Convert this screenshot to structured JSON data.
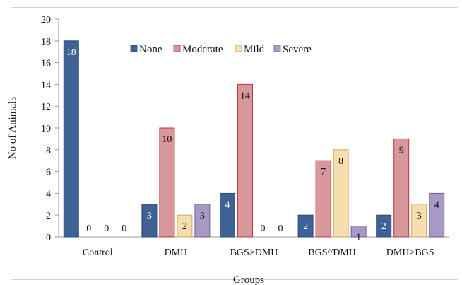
{
  "chart_data": {
    "type": "bar",
    "title": "",
    "xlabel": "Groups",
    "ylabel": "No of Animals",
    "ylim": [
      0,
      20
    ],
    "yticks": [
      0,
      2,
      4,
      6,
      8,
      10,
      12,
      14,
      16,
      18,
      20
    ],
    "grid": false,
    "legend_position": "top",
    "categories": [
      "Control",
      "DMH",
      "BGS>DMH",
      "BGS//DMH",
      "DMH>BGS"
    ],
    "series": [
      {
        "name": "None",
        "color": "#3d6296",
        "values": [
          18,
          3,
          4,
          2,
          2
        ]
      },
      {
        "name": "Moderate",
        "color": "#d7979b",
        "values": [
          0,
          10,
          14,
          7,
          9
        ]
      },
      {
        "name": "Mild",
        "color": "#f6deae",
        "values": [
          0,
          2,
          0,
          8,
          3
        ]
      },
      {
        "name": "Severe",
        "color": "#a899c5",
        "values": [
          0,
          3,
          0,
          1,
          4
        ]
      }
    ],
    "data_labels": [
      [
        "18",
        "0",
        "0",
        "0"
      ],
      [
        "3",
        "10",
        "2",
        "3"
      ],
      [
        "4",
        "14",
        "0",
        "0"
      ],
      [
        "2",
        "7",
        "8",
        "1"
      ],
      [
        "2",
        "9",
        "3",
        "4"
      ]
    ]
  }
}
